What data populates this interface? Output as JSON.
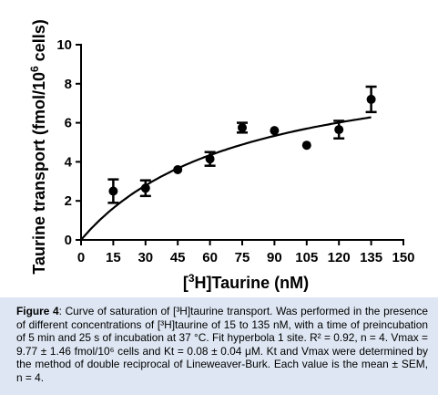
{
  "chart_data": {
    "type": "scatter",
    "title": "",
    "xlabel_prefix": "[",
    "xlabel_sup": "3",
    "xlabel_suffix": "H]Taurine (nM)",
    "ylabel_main": "Taurine transport (fmol/10",
    "ylabel_sup": "6",
    "ylabel_end": " cells)",
    "xlim": [
      0,
      150
    ],
    "ylim": [
      0,
      10
    ],
    "x_ticks": [
      0,
      15,
      30,
      45,
      60,
      75,
      90,
      105,
      120,
      135,
      150
    ],
    "x_tick_labels": [
      "0",
      "15",
      "30",
      "45",
      "60",
      "75",
      "90",
      "105",
      "120",
      "135",
      "150"
    ],
    "y_ticks": [
      0,
      2,
      4,
      6,
      8,
      10
    ],
    "y_tick_labels": [
      "0",
      "2",
      "4",
      "6",
      "8",
      "10"
    ],
    "series": [
      {
        "x": [
          15,
          30,
          45,
          60,
          75,
          90,
          105,
          120,
          135
        ],
        "y": [
          2.5,
          2.65,
          3.6,
          4.15,
          5.75,
          5.6,
          4.85,
          5.65,
          7.2
        ],
        "err": [
          0.6,
          0.4,
          0,
          0.35,
          0.25,
          0,
          0,
          0.45,
          0.65
        ]
      }
    ],
    "fit": {
      "model": "hyperbola 1 site",
      "vmax": 9.77,
      "kd": 75
    }
  },
  "caption": {
    "label": "Figure 4",
    "text": ": Curve of saturation of [³H]taurine transport. Was performed in the presence of different concentrations of [³H]taurine of 15 to 135 nM, with a time of preincubation of 5 min and 25 s of incubation at 37 °C. Fit hyperbola 1 site. R² = 0.92, n = 4. Vmax = 9.77 ± 1.46 fmol/10⁶ cells and Kt = 0.08 ± 0.04 μM. Kt and Vmax were determined by the method of double reciprocal of Lineweaver-Burk. Each value is the mean ± SEM, n = 4."
  }
}
